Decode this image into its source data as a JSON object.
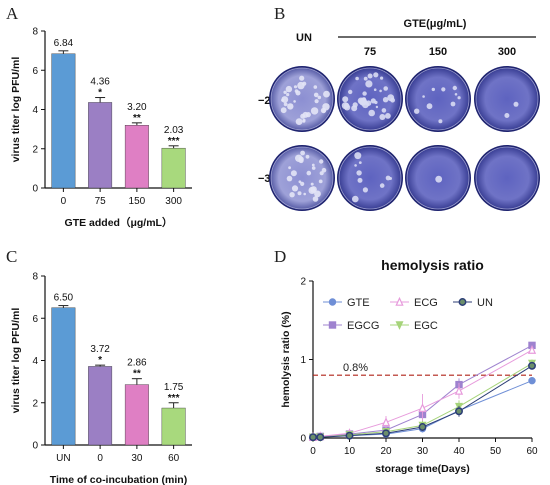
{
  "panels": {
    "a": "A",
    "b": "B",
    "c": "C",
    "d": "D"
  },
  "chart_data": [
    {
      "panel": "A",
      "type": "bar",
      "categories": [
        "0",
        "75",
        "150",
        "300"
      ],
      "values": [
        6.84,
        4.36,
        3.2,
        2.03
      ],
      "errors": [
        0.15,
        0.25,
        0.12,
        0.12
      ],
      "value_labels": [
        "6.84",
        "4.36",
        "3.20",
        "2.03"
      ],
      "significance": [
        "",
        "*",
        "**",
        "***"
      ],
      "colors": [
        "#5b9bd5",
        "#9b7fc4",
        "#df7fc4",
        "#a8d97d"
      ],
      "xlabel": "GTE added（μg/mL）",
      "ylabel": "virus titer log PFU/ml",
      "ylim": [
        0,
        8
      ],
      "yticks": [
        "0",
        "2",
        "4",
        "6",
        "8"
      ]
    },
    {
      "panel": "C",
      "type": "bar",
      "categories": [
        "UN",
        "0",
        "30",
        "60"
      ],
      "values": [
        6.5,
        3.72,
        2.86,
        1.75
      ],
      "errors": [
        0.1,
        0.06,
        0.28,
        0.25
      ],
      "value_labels": [
        "6.50",
        "3.72",
        "2.86",
        "1.75"
      ],
      "significance": [
        "",
        "*",
        "**",
        "***"
      ],
      "colors": [
        "#5b9bd5",
        "#9b7fc4",
        "#df7fc4",
        "#a8d97d"
      ],
      "xlabel": "Time of co-incubation (min)",
      "ylabel": "virus titer log PFU/ml",
      "ylim": [
        0,
        8
      ],
      "yticks": [
        "0",
        "2",
        "4",
        "6",
        "8"
      ]
    },
    {
      "panel": "D",
      "type": "line",
      "title": "hemolysis ratio",
      "xlabel": "storage time(Days)",
      "ylabel": "hemolysis ratio (%)",
      "x": [
        0,
        2,
        10,
        20,
        30,
        40,
        60
      ],
      "xlim": [
        0,
        60
      ],
      "ylim": [
        0,
        2
      ],
      "xticks": [
        "0",
        "10",
        "20",
        "30",
        "40",
        "50",
        "60"
      ],
      "yticks": [
        "0",
        "1",
        "2"
      ],
      "reference_line": {
        "value": 0.8,
        "label": "0.8%",
        "color": "#b02418"
      },
      "legend_position": "top",
      "series": [
        {
          "name": "GTE",
          "color": "#6f8fd6",
          "marker": "circle",
          "values": [
            0.01,
            0.02,
            0.03,
            0.05,
            0.12,
            0.35,
            0.73
          ],
          "errors": [
            0.01,
            0.01,
            0.02,
            0.03,
            0.05,
            0.06,
            0.04
          ]
        },
        {
          "name": "EGCG",
          "color": "#9f83cf",
          "marker": "square",
          "values": [
            0.01,
            0.02,
            0.05,
            0.1,
            0.3,
            0.68,
            1.18
          ],
          "errors": [
            0.01,
            0.01,
            0.02,
            0.05,
            0.12,
            0.08,
            0.04
          ]
        },
        {
          "name": "ECG",
          "color": "#e79bdc",
          "marker": "triangle",
          "values": [
            0.01,
            0.02,
            0.06,
            0.2,
            0.38,
            0.6,
            1.12
          ],
          "errors": [
            0.01,
            0.01,
            0.03,
            0.08,
            0.18,
            0.1,
            0.04
          ]
        },
        {
          "name": "EGC",
          "color": "#a6d47a",
          "marker": "tri-down",
          "values": [
            0.01,
            0.01,
            0.04,
            0.08,
            0.16,
            0.4,
            0.95
          ],
          "errors": [
            0.01,
            0.01,
            0.02,
            0.04,
            0.06,
            0.08,
            0.05
          ]
        },
        {
          "name": "UN",
          "color": "#2c3e76",
          "marker": "circle-dark",
          "values": [
            0.01,
            0.01,
            0.03,
            0.06,
            0.14,
            0.34,
            0.92
          ],
          "errors": [
            0.01,
            0.01,
            0.02,
            0.03,
            0.05,
            0.07,
            0.05
          ]
        }
      ]
    }
  ],
  "plaque_panel": {
    "un_label": "UN",
    "group_label": "GTE(μg/mL)",
    "columns": [
      "75",
      "150",
      "300"
    ],
    "rows": [
      "−2",
      "−3"
    ]
  }
}
